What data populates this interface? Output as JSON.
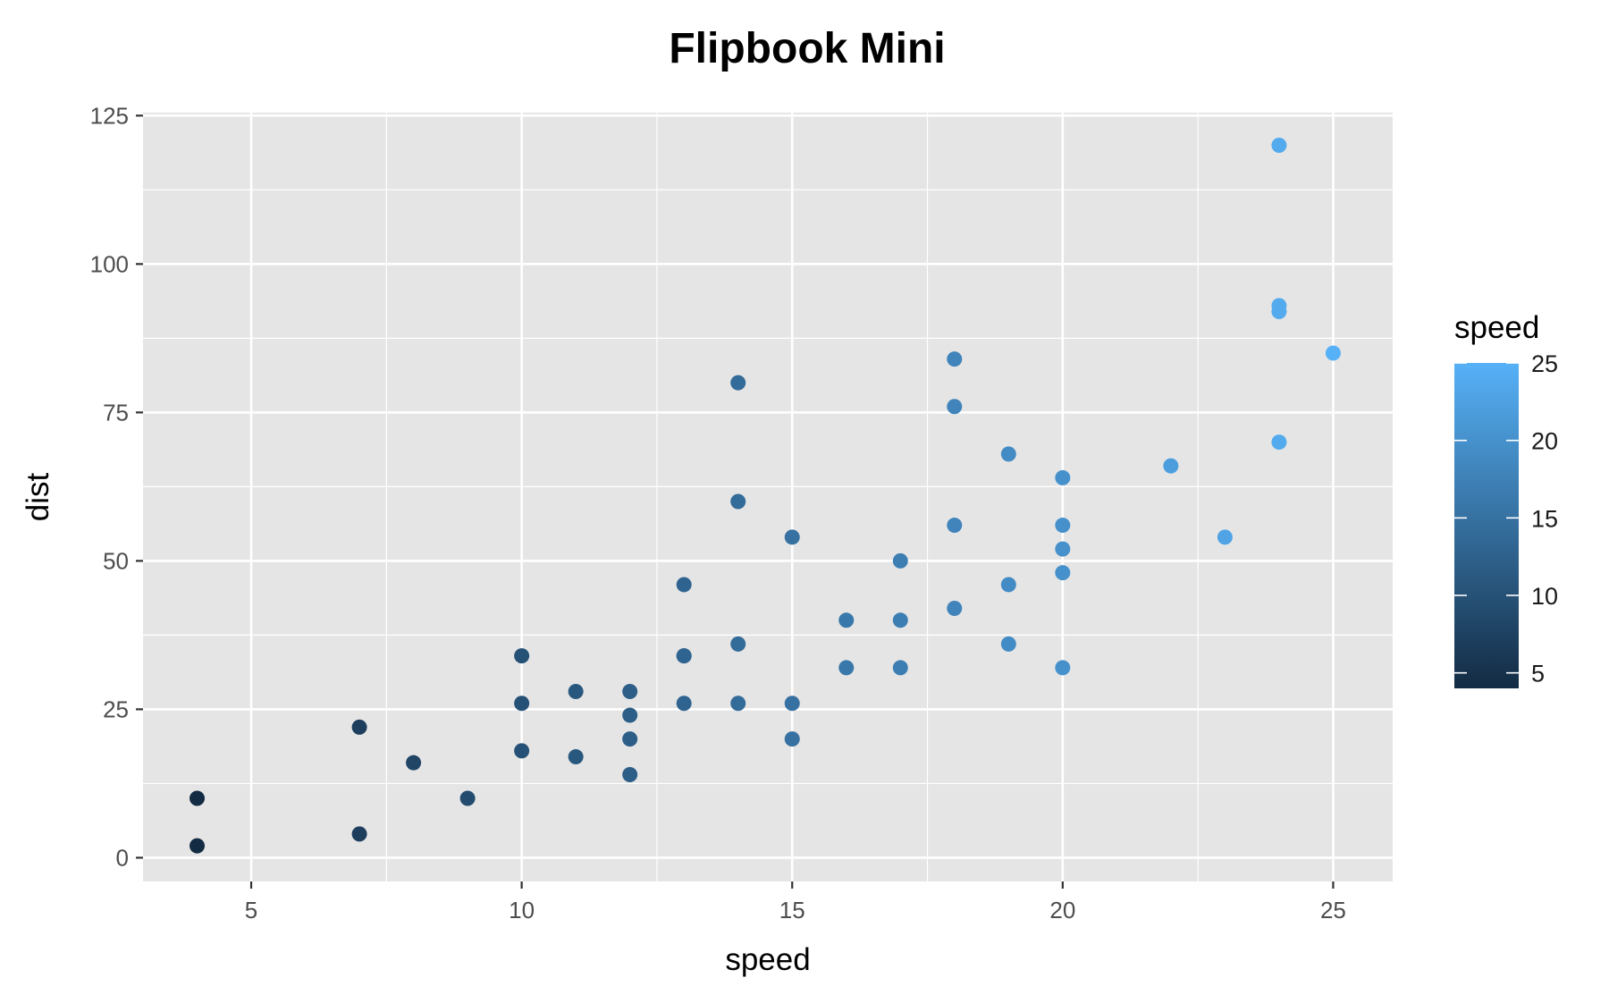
{
  "chart_data": {
    "type": "scatter",
    "title": "Flipbook Mini",
    "xlabel": "speed",
    "ylabel": "dist",
    "xlim": [
      3,
      26.1
    ],
    "ylim": [
      -4,
      125.5
    ],
    "x_ticks": [
      5,
      10,
      15,
      20,
      25
    ],
    "y_ticks": [
      0,
      25,
      50,
      75,
      100,
      125
    ],
    "grid": true,
    "legend": {
      "title": "speed",
      "placement": "right",
      "type": "colorbar",
      "range": [
        4,
        25
      ],
      "ticks": [
        5,
        10,
        15,
        20,
        25
      ],
      "color_low": "#132B43",
      "color_high": "#56B1F7"
    },
    "colors": {
      "panel_background": "#E5E5E5",
      "grid": "#FFFFFF"
    },
    "points": [
      {
        "x": 4,
        "y": 2
      },
      {
        "x": 4,
        "y": 10
      },
      {
        "x": 7,
        "y": 4
      },
      {
        "x": 7,
        "y": 22
      },
      {
        "x": 8,
        "y": 16
      },
      {
        "x": 9,
        "y": 10
      },
      {
        "x": 10,
        "y": 18
      },
      {
        "x": 10,
        "y": 26
      },
      {
        "x": 10,
        "y": 34
      },
      {
        "x": 11,
        "y": 17
      },
      {
        "x": 11,
        "y": 28
      },
      {
        "x": 12,
        "y": 14
      },
      {
        "x": 12,
        "y": 20
      },
      {
        "x": 12,
        "y": 24
      },
      {
        "x": 12,
        "y": 28
      },
      {
        "x": 13,
        "y": 26
      },
      {
        "x": 13,
        "y": 34
      },
      {
        "x": 13,
        "y": 34
      },
      {
        "x": 13,
        "y": 46
      },
      {
        "x": 14,
        "y": 26
      },
      {
        "x": 14,
        "y": 36
      },
      {
        "x": 14,
        "y": 60
      },
      {
        "x": 14,
        "y": 80
      },
      {
        "x": 15,
        "y": 20
      },
      {
        "x": 15,
        "y": 26
      },
      {
        "x": 15,
        "y": 54
      },
      {
        "x": 16,
        "y": 32
      },
      {
        "x": 16,
        "y": 40
      },
      {
        "x": 17,
        "y": 32
      },
      {
        "x": 17,
        "y": 40
      },
      {
        "x": 17,
        "y": 50
      },
      {
        "x": 18,
        "y": 42
      },
      {
        "x": 18,
        "y": 56
      },
      {
        "x": 18,
        "y": 76
      },
      {
        "x": 18,
        "y": 84
      },
      {
        "x": 19,
        "y": 36
      },
      {
        "x": 19,
        "y": 46
      },
      {
        "x": 19,
        "y": 68
      },
      {
        "x": 20,
        "y": 32
      },
      {
        "x": 20,
        "y": 48
      },
      {
        "x": 20,
        "y": 52
      },
      {
        "x": 20,
        "y": 56
      },
      {
        "x": 20,
        "y": 64
      },
      {
        "x": 22,
        "y": 66
      },
      {
        "x": 23,
        "y": 54
      },
      {
        "x": 24,
        "y": 70
      },
      {
        "x": 24,
        "y": 92
      },
      {
        "x": 24,
        "y": 93
      },
      {
        "x": 24,
        "y": 120
      },
      {
        "x": 25,
        "y": 85
      }
    ]
  }
}
